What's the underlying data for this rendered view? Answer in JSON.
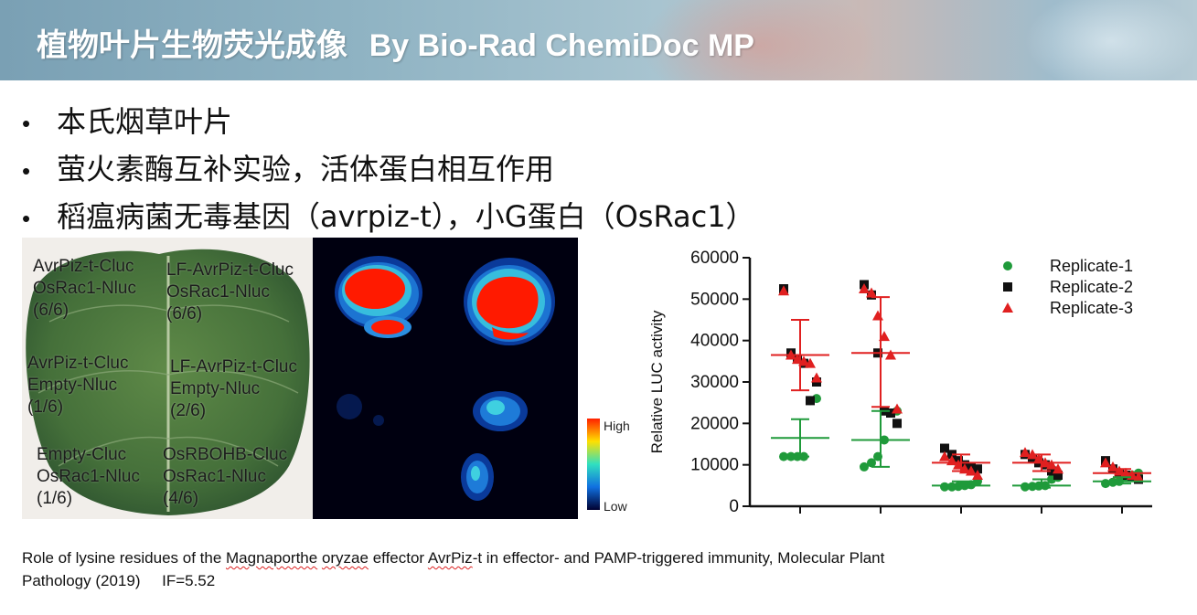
{
  "header": {
    "title_cn": "植物叶片生物荧光成像",
    "title_en": "By Bio-Rad ChemiDoc MP"
  },
  "bullets": [
    "本氏烟草叶片",
    "萤火素酶互补实验，活体蛋白相互作用",
    "稻瘟病菌无毒基因（avrpiz-t），小G蛋白（OsRac1）"
  ],
  "bullet_marker": "•",
  "leaf_labels": [
    {
      "line1": "AvrPiz-t-Cluc",
      "line2": "OsRac1-Nluc",
      "line3": "(6/6)"
    },
    {
      "line1": "LF-AvrPiz-t-Cluc",
      "line2": "OsRac1-Nluc",
      "line3": "(6/6)"
    },
    {
      "line1": "AvrPiz-t-Cluc",
      "line2": "Empty-Nluc",
      "line3": "(1/6)"
    },
    {
      "line1": "LF-AvrPiz-t-Cluc",
      "line2": "Empty-Nluc",
      "line3": "(2/6)"
    },
    {
      "line1": "Empty-Cluc",
      "line2": "OsRac1-Nluc",
      "line3": "(1/6)"
    },
    {
      "line1": "OsRBOHB-Cluc",
      "line2": "OsRac1-Nluc",
      "line3": "(4/6)"
    }
  ],
  "colorbar": {
    "high": "High",
    "low": "Low"
  },
  "chart_data": {
    "type": "scatter",
    "ylabel": "Relative LUC activity",
    "ylim": [
      0,
      60000
    ],
    "yticks": [
      "0",
      "10000",
      "20000",
      "30000",
      "40000",
      "50000",
      "60000"
    ],
    "legend_position": "top-right",
    "series": [
      {
        "name": "Replicate-1",
        "color": "#1f9a3a",
        "marker": "circle",
        "groups": [
          [
            12000,
            12000,
            12000,
            12000,
            25500,
            26000
          ],
          [
            9500,
            10500,
            12000,
            16000,
            22500,
            23000
          ],
          [
            4700,
            4700,
            4800,
            5000,
            5200,
            6000
          ],
          [
            4700,
            4800,
            4900,
            5000,
            6500,
            7000
          ],
          [
            5500,
            5800,
            6000,
            7000,
            7500,
            8000
          ]
        ]
      },
      {
        "name": "Replicate-2",
        "color": "#111111",
        "marker": "square",
        "groups": [
          [
            52500,
            37000,
            35500,
            34500,
            25500,
            30000
          ],
          [
            53500,
            51000,
            37000,
            23000,
            22500,
            20000
          ],
          [
            14000,
            12500,
            11000,
            10000,
            9500,
            9000
          ],
          [
            12500,
            11500,
            10500,
            10000,
            8500,
            7500
          ],
          [
            11000,
            9000,
            8000,
            7500,
            7000,
            6500
          ]
        ]
      },
      {
        "name": "Replicate-3",
        "color": "#e02020",
        "marker": "triangle",
        "groups": [
          [
            52000,
            36500,
            35500,
            35000,
            34500,
            31000
          ],
          [
            52500,
            51500,
            46000,
            41000,
            36500,
            23500
          ],
          [
            12000,
            11000,
            10000,
            9000,
            8500,
            7500
          ],
          [
            13000,
            12500,
            11500,
            10500,
            10000,
            9000
          ],
          [
            10500,
            9500,
            8500,
            8000,
            7500,
            7000
          ]
        ]
      }
    ],
    "group_summary": [
      {
        "color": "#e02020",
        "mean": 36500,
        "upper": 45000,
        "lower": 28000
      },
      {
        "color": "#1f9a3a",
        "mean": 16500,
        "upper": 21000,
        "lower": 12000
      },
      {
        "color": "#e02020",
        "mean": 37000,
        "upper": 50500,
        "lower": 24000
      },
      {
        "color": "#1f9a3a",
        "mean": 16000,
        "upper": 23000,
        "lower": 9500
      },
      {
        "color": "#e02020",
        "mean": 10500,
        "upper": 12500,
        "lower": 8500
      },
      {
        "color": "#1f9a3a",
        "mean": 5000,
        "upper": 6000,
        "lower": 4500
      },
      {
        "color": "#e02020",
        "mean": 10500,
        "upper": 12500,
        "lower": 8500
      },
      {
        "color": "#1f9a3a",
        "mean": 5000,
        "upper": 6500,
        "lower": 4500
      },
      {
        "color": "#e02020",
        "mean": 8000,
        "upper": 9000,
        "lower": 7000
      },
      {
        "color": "#1f9a3a",
        "mean": 6000,
        "upper": 7000,
        "lower": 5500
      }
    ]
  },
  "citation": {
    "p1": "Role of lysine residues of the ",
    "u1": "Magnaporthe",
    "s1": " ",
    "u2": "oryzae",
    "p2": " effector ",
    "u3": "AvrPiz",
    "p3": "-t in effector- and PAMP-triggered immunity, Molecular Plant",
    "line2": "Pathology (2019)     IF=5.52"
  }
}
